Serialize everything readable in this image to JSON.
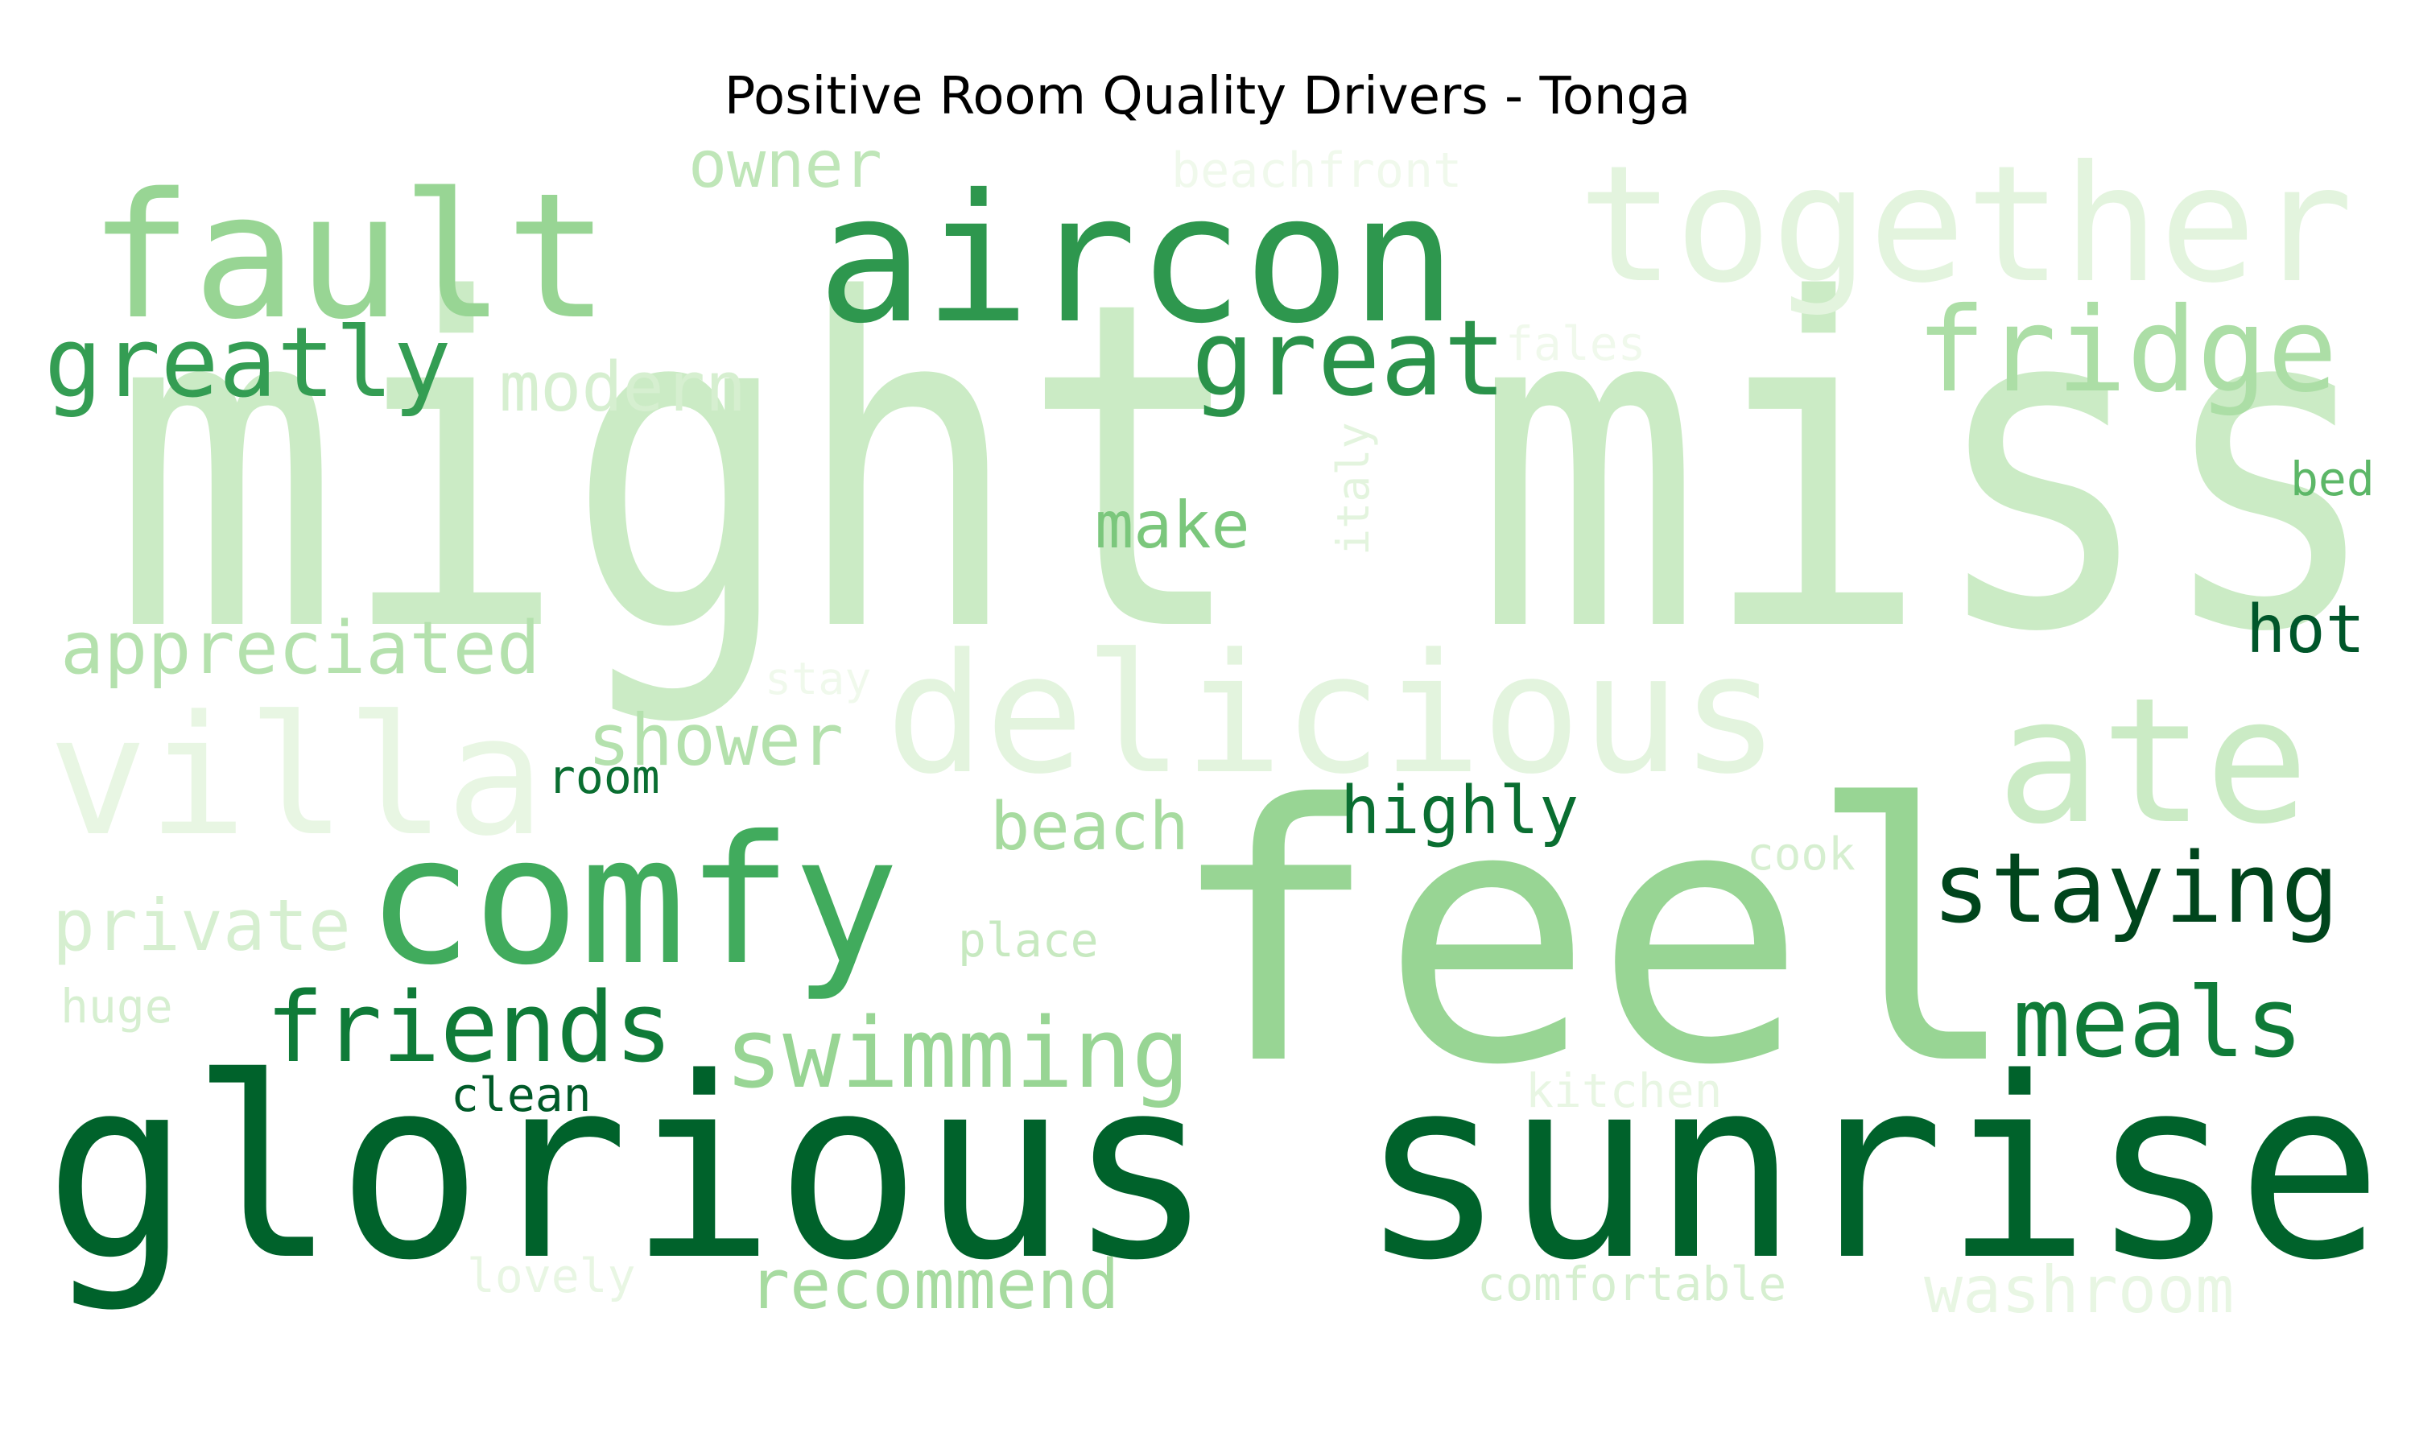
{
  "chart_data": {
    "type": "wordcloud",
    "title": "Positive Room Quality Drivers - Tonga",
    "colormap": "Greens",
    "words": [
      {
        "text": "might miss",
        "weight": 1.0,
        "color": "#cbebc5"
      },
      {
        "text": "feel",
        "weight": 0.97,
        "color": "#98d594"
      },
      {
        "text": "glorious sunrise",
        "weight": 0.78,
        "color": "#00622b"
      },
      {
        "text": "aircon",
        "weight": 0.57,
        "color": "#2e974e"
      },
      {
        "text": "together",
        "weight": 0.54,
        "color": "#e3f4de"
      },
      {
        "text": "comfy",
        "weight": 0.53,
        "color": "#41ab5d"
      },
      {
        "text": "fault",
        "weight": 0.5,
        "color": "#98d594"
      },
      {
        "text": "ate",
        "weight": 0.5,
        "color": "#cbebc5"
      },
      {
        "text": "villa",
        "weight": 0.48,
        "color": "#e8f6e3"
      },
      {
        "text": "delicious",
        "weight": 0.46,
        "color": "#e3f4de"
      },
      {
        "text": "fridge",
        "weight": 0.33,
        "color": "#acdea6"
      },
      {
        "text": "great",
        "weight": 0.31,
        "color": "#2a924a"
      },
      {
        "text": "greatly",
        "weight": 0.3,
        "color": "#349d53"
      },
      {
        "text": "staying",
        "weight": 0.29,
        "color": "#00451c"
      },
      {
        "text": "friends",
        "weight": 0.29,
        "color": "#0f7b38"
      },
      {
        "text": "meals",
        "weight": 0.29,
        "color": "#0f7b38"
      },
      {
        "text": "swimming",
        "weight": 0.29,
        "color": "#98d594"
      },
      {
        "text": "appreciated",
        "weight": 0.22,
        "color": "#b4e1ad"
      },
      {
        "text": "shower",
        "weight": 0.21,
        "color": "#b4e1ad"
      },
      {
        "text": "private",
        "weight": 0.21,
        "color": "#d6efd0"
      },
      {
        "text": "modern",
        "weight": 0.2,
        "color": "#d6efd0"
      },
      {
        "text": "recommend",
        "weight": 0.2,
        "color": "#a7dba0"
      },
      {
        "text": "owner",
        "weight": 0.19,
        "color": "#bfe6b8"
      },
      {
        "text": "make",
        "weight": 0.19,
        "color": "#7bc77c"
      },
      {
        "text": "beach",
        "weight": 0.19,
        "color": "#a7dba0"
      },
      {
        "text": "highly",
        "weight": 0.19,
        "color": "#0a6e31"
      },
      {
        "text": "hot",
        "weight": 0.19,
        "color": "#00562a"
      },
      {
        "text": "washroom",
        "weight": 0.18,
        "color": "#e8f6e3"
      },
      {
        "text": "beachfront",
        "weight": 0.14,
        "color": "#f0f9ec"
      },
      {
        "text": "fales",
        "weight": 0.13,
        "color": "#f0f9ec"
      },
      {
        "text": "italy",
        "weight": 0.13,
        "color": "#e3f4de"
      },
      {
        "text": "bed",
        "weight": 0.12,
        "color": "#5cb767"
      },
      {
        "text": "stay",
        "weight": 0.12,
        "color": "#f0f9ec"
      },
      {
        "text": "room",
        "weight": 0.12,
        "color": "#0a6e31"
      },
      {
        "text": "cook",
        "weight": 0.12,
        "color": "#d6efd0"
      },
      {
        "text": "place",
        "weight": 0.12,
        "color": "#c7e9c0"
      },
      {
        "text": "huge",
        "weight": 0.12,
        "color": "#d6efd0"
      },
      {
        "text": "clean",
        "weight": 0.12,
        "color": "#005a28"
      },
      {
        "text": "kitchen",
        "weight": 0.12,
        "color": "#e8f6e3"
      },
      {
        "text": "lovely",
        "weight": 0.12,
        "color": "#e8f6e3"
      },
      {
        "text": "comfortable",
        "weight": 0.12,
        "color": "#d6efd0"
      }
    ]
  }
}
